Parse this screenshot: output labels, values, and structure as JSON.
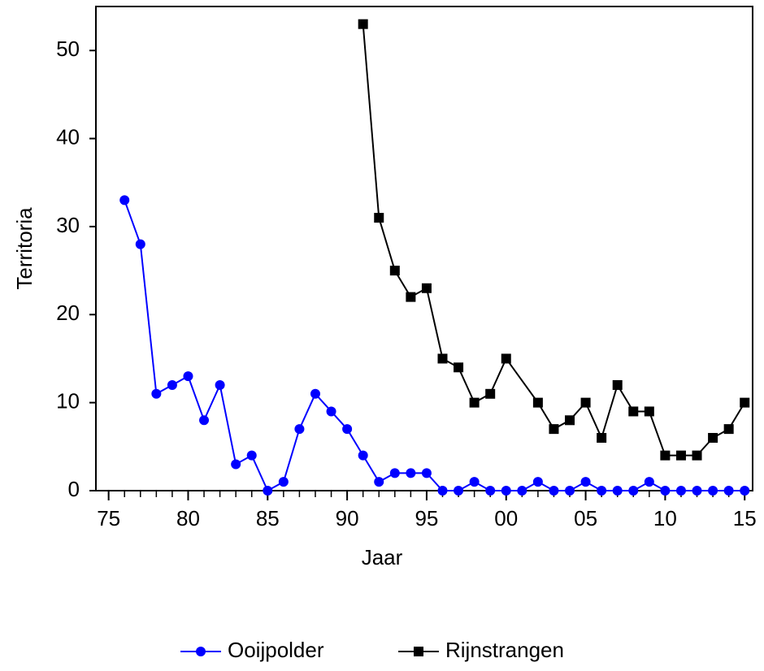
{
  "chart_data": {
    "type": "line",
    "xlabel": "Jaar",
    "ylabel": "Territoria",
    "xlim": [
      1974.2,
      2015.5
    ],
    "xticks": [
      {
        "value": 1975,
        "label": "75"
      },
      {
        "value": 1980,
        "label": "80"
      },
      {
        "value": 1985,
        "label": "85"
      },
      {
        "value": 1990,
        "label": "90"
      },
      {
        "value": 1995,
        "label": "95"
      },
      {
        "value": 2000,
        "label": "00"
      },
      {
        "value": 2005,
        "label": "05"
      },
      {
        "value": 2010,
        "label": "10"
      },
      {
        "value": 2015,
        "label": "15"
      }
    ],
    "ylim": [
      0,
      55
    ],
    "yticks": [
      0,
      10,
      20,
      30,
      40,
      50
    ],
    "series": [
      {
        "name": "Ooijpolder",
        "color": "#0000ff",
        "marker": "circle",
        "x": [
          1976,
          1977,
          1978,
          1979,
          1980,
          1981,
          1982,
          1983,
          1984,
          1985,
          1986,
          1987,
          1988,
          1989,
          1990,
          1991,
          1992,
          1993,
          1994,
          1995,
          1996,
          1997,
          1998,
          1999,
          2000,
          2001,
          2002,
          2003,
          2004,
          2005,
          2006,
          2007,
          2008,
          2009,
          2010,
          2011,
          2012,
          2013,
          2014,
          2015
        ],
        "values": [
          33,
          28,
          11,
          12,
          13,
          8,
          12,
          3,
          4,
          0,
          1,
          7,
          11,
          9,
          7,
          4,
          1,
          2,
          2,
          2,
          0,
          0,
          1,
          0,
          0,
          0,
          1,
          0,
          0,
          1,
          0,
          0,
          0,
          1,
          0,
          0,
          0,
          0,
          0,
          0
        ]
      },
      {
        "name": "Rijnstrangen",
        "color": "#000000",
        "marker": "square",
        "x": [
          1991,
          1992,
          1993,
          1994,
          1995,
          1996,
          1997,
          1998,
          1999,
          2000,
          2002,
          2003,
          2004,
          2005,
          2006,
          2007,
          2008,
          2009,
          2010,
          2011,
          2012,
          2013,
          2014,
          2015
        ],
        "values": [
          53,
          31,
          25,
          22,
          23,
          15,
          14,
          10,
          11,
          15,
          10,
          7,
          8,
          10,
          6,
          12,
          9,
          9,
          4,
          4,
          4,
          6,
          7,
          10
        ]
      }
    ]
  }
}
